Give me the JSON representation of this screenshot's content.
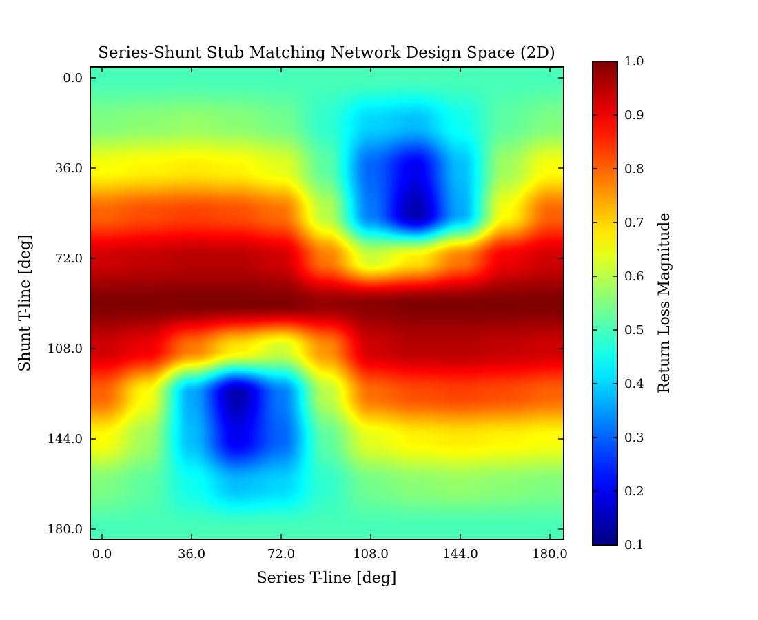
{
  "chart_data": {
    "type": "heatmap",
    "title": "Series-Shunt Stub Matching Network Design Space (2D)",
    "xlabel": "Series T-line [deg]",
    "ylabel": "Shunt T-line [deg]",
    "xlim": [
      0,
      180
    ],
    "ylim": [
      180,
      0
    ],
    "x_ticks": [
      "0.0",
      "36.0",
      "72.0",
      "108.0",
      "144.0",
      "180.0"
    ],
    "y_ticks": [
      "0.0",
      "36.0",
      "72.0",
      "108.0",
      "144.0",
      "180.0"
    ],
    "colormap": "jet",
    "colorbar": {
      "label": "Return Loss Magnitude",
      "range": [
        0.1,
        1.0
      ],
      "ticks": [
        "0.1",
        "0.2",
        "0.3",
        "0.4",
        "0.5",
        "0.6",
        "0.7",
        "0.8",
        "0.9",
        "1.0"
      ]
    },
    "z_grid": {
      "description_values": "Return loss magnitude sampled on a 11x11 grid; rows = shunt T-line 0..180 deg (step 18), cols = series T-line 0..180 deg (step 18)",
      "x": [
        0,
        18,
        36,
        54,
        72,
        90,
        108,
        126,
        144,
        162,
        180
      ],
      "y": [
        0,
        18,
        36,
        54,
        72,
        90,
        108,
        126,
        144,
        162,
        180
      ],
      "values": [
        [
          0.5,
          0.5,
          0.5,
          0.5,
          0.5,
          0.5,
          0.5,
          0.5,
          0.5,
          0.5,
          0.5
        ],
        [
          0.55,
          0.56,
          0.57,
          0.56,
          0.54,
          0.48,
          0.4,
          0.38,
          0.45,
          0.52,
          0.55
        ],
        [
          0.66,
          0.67,
          0.68,
          0.67,
          0.64,
          0.52,
          0.3,
          0.2,
          0.38,
          0.58,
          0.66
        ],
        [
          0.8,
          0.82,
          0.83,
          0.82,
          0.79,
          0.6,
          0.32,
          0.14,
          0.36,
          0.66,
          0.8
        ],
        [
          0.93,
          0.94,
          0.95,
          0.95,
          0.93,
          0.78,
          0.62,
          0.68,
          0.78,
          0.9,
          0.93
        ],
        [
          1.0,
          1.0,
          1.0,
          1.0,
          1.0,
          0.98,
          0.99,
          1.0,
          1.0,
          1.0,
          1.0
        ],
        [
          0.93,
          0.9,
          0.78,
          0.68,
          0.62,
          0.76,
          0.93,
          0.95,
          0.95,
          0.94,
          0.93
        ],
        [
          0.8,
          0.66,
          0.36,
          0.14,
          0.32,
          0.6,
          0.79,
          0.82,
          0.83,
          0.82,
          0.8
        ],
        [
          0.66,
          0.58,
          0.38,
          0.2,
          0.3,
          0.52,
          0.64,
          0.67,
          0.68,
          0.67,
          0.66
        ],
        [
          0.55,
          0.52,
          0.45,
          0.38,
          0.4,
          0.48,
          0.54,
          0.56,
          0.57,
          0.56,
          0.55
        ],
        [
          0.5,
          0.5,
          0.5,
          0.5,
          0.5,
          0.5,
          0.5,
          0.5,
          0.5,
          0.5,
          0.5
        ]
      ]
    }
  }
}
